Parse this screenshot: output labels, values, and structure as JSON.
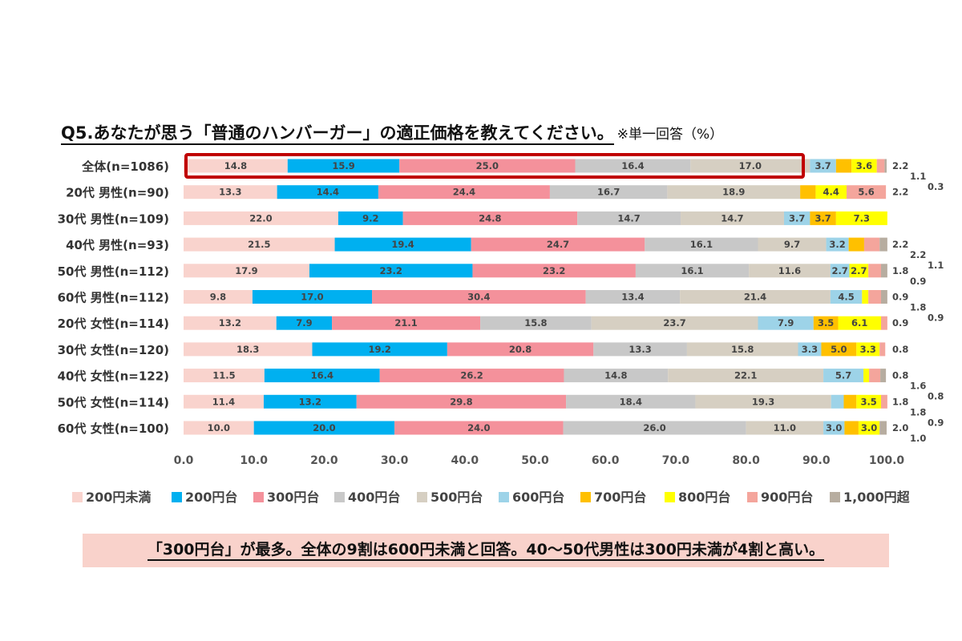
{
  "title": "Q5.あなたが思う「普通のハンバーガー」の適正価格を教えてください。",
  "note": "※単一回答（%）",
  "conclusion": "「300円台」が最多。全体の9割は600円未満と回答。40～50代男性は300円未満が4割と高い。",
  "chart_data": {
    "type": "bar",
    "orientation": "horizontal",
    "stacked": true,
    "categories": [
      "全体(n=1086)",
      "20代 男性(n=90)",
      "30代 男性(n=109)",
      "40代 男性(n=93)",
      "50代 男性(n=112)",
      "60代 男性(n=112)",
      "20代 女性(n=114)",
      "30代 女性(n=120)",
      "40代 女性(n=122)",
      "50代 女性(n=114)",
      "60代 女性(n=100)"
    ],
    "series": [
      {
        "name": "200円未満",
        "color": "#f9d3cd",
        "values": [
          14.8,
          13.3,
          22.0,
          21.5,
          17.9,
          9.8,
          13.2,
          18.3,
          11.5,
          11.4,
          10.0
        ]
      },
      {
        "name": "200円台",
        "color": "#00b0f0",
        "values": [
          15.9,
          14.4,
          9.2,
          19.4,
          23.2,
          17.0,
          7.9,
          19.2,
          16.4,
          13.2,
          20.0
        ]
      },
      {
        "name": "300円台",
        "color": "#f4919b",
        "values": [
          25.0,
          24.4,
          24.8,
          24.7,
          23.2,
          30.4,
          21.1,
          20.8,
          26.2,
          29.8,
          24.0
        ]
      },
      {
        "name": "400円台",
        "color": "#c8c8c8",
        "values": [
          16.4,
          16.7,
          14.7,
          16.1,
          16.1,
          13.4,
          15.8,
          13.3,
          14.8,
          18.4,
          26.0
        ]
      },
      {
        "name": "500円台",
        "color": "#d6cfc2",
        "values": [
          17.0,
          18.9,
          14.7,
          9.7,
          11.6,
          21.4,
          23.7,
          15.8,
          22.1,
          19.3,
          11.0
        ]
      },
      {
        "name": "600円台",
        "color": "#9dd3e8",
        "values": [
          3.7,
          0,
          3.7,
          3.2,
          2.7,
          4.5,
          7.9,
          3.3,
          5.7,
          1.8,
          3.0
        ]
      },
      {
        "name": "700円台",
        "color": "#ffc000",
        "values": [
          2.2,
          2.2,
          3.7,
          2.2,
          0,
          0,
          3.5,
          5.0,
          0,
          1.8,
          2.0
        ]
      },
      {
        "name": "800円台",
        "color": "#ffff00",
        "values": [
          3.6,
          4.4,
          7.3,
          0,
          2.7,
          0.9,
          6.1,
          3.3,
          0.8,
          3.5,
          3.0
        ]
      },
      {
        "name": "900円台",
        "color": "#f4a59c",
        "values": [
          1.1,
          5.6,
          0,
          2.2,
          1.8,
          1.8,
          0.9,
          0.8,
          1.6,
          0.9,
          0
        ]
      },
      {
        "name": "1,000円超",
        "color": "#b7ada0",
        "values": [
          0.3,
          0,
          0,
          1.1,
          0.9,
          0.9,
          0,
          0,
          0.8,
          0,
          1.0
        ]
      }
    ],
    "xlim": [
      0,
      100
    ],
    "xticks": [
      "0.0",
      "10.0",
      "20.0",
      "30.0",
      "40.0",
      "50.0",
      "60.0",
      "70.0",
      "80.0",
      "90.0",
      "100.0"
    ],
    "legend_position": "bottom",
    "highlight_row": "全体(n=1086)"
  }
}
